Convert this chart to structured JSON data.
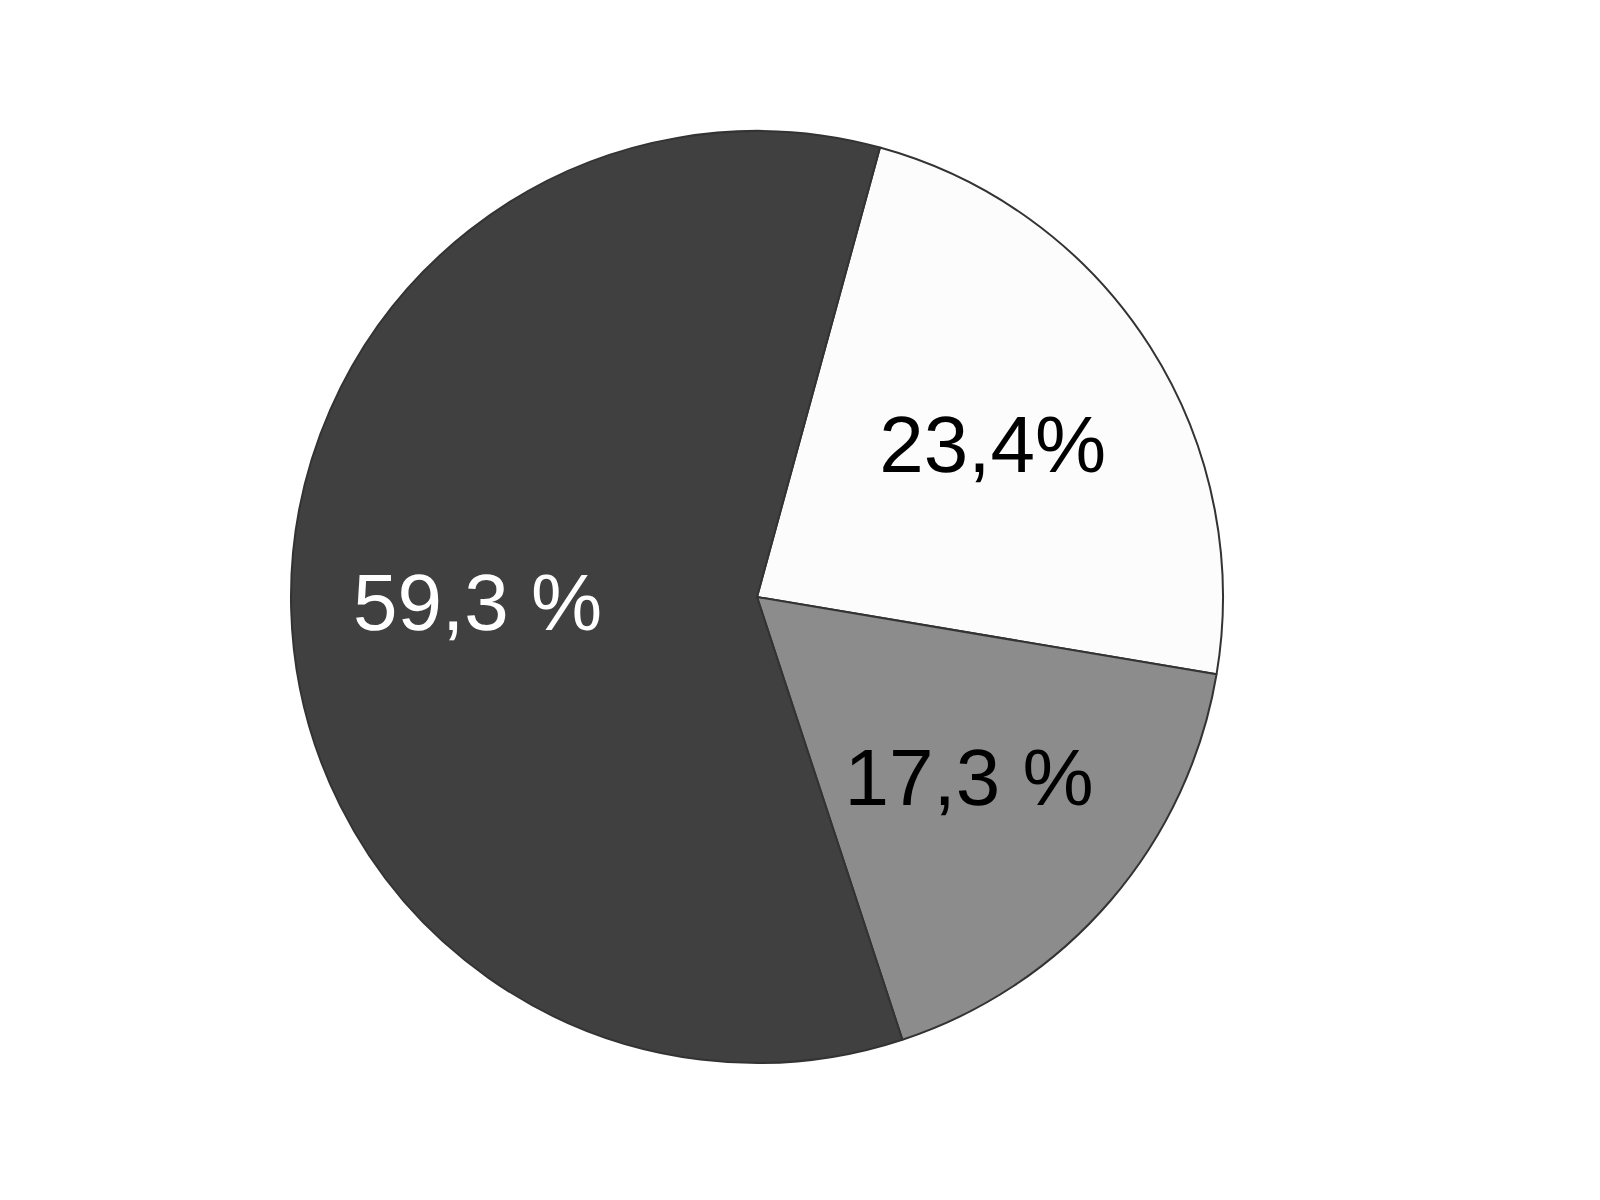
{
  "chart_data": {
    "type": "pie",
    "categories": [
      null,
      null,
      null
    ],
    "values": [
      23.4,
      17.3,
      59.3
    ],
    "colors": [
      "#fcfcfc",
      "#8c8c8c",
      "#404040"
    ],
    "value_labels": [
      "23,4%",
      "17,3 %",
      "59,3 %"
    ]
  }
}
